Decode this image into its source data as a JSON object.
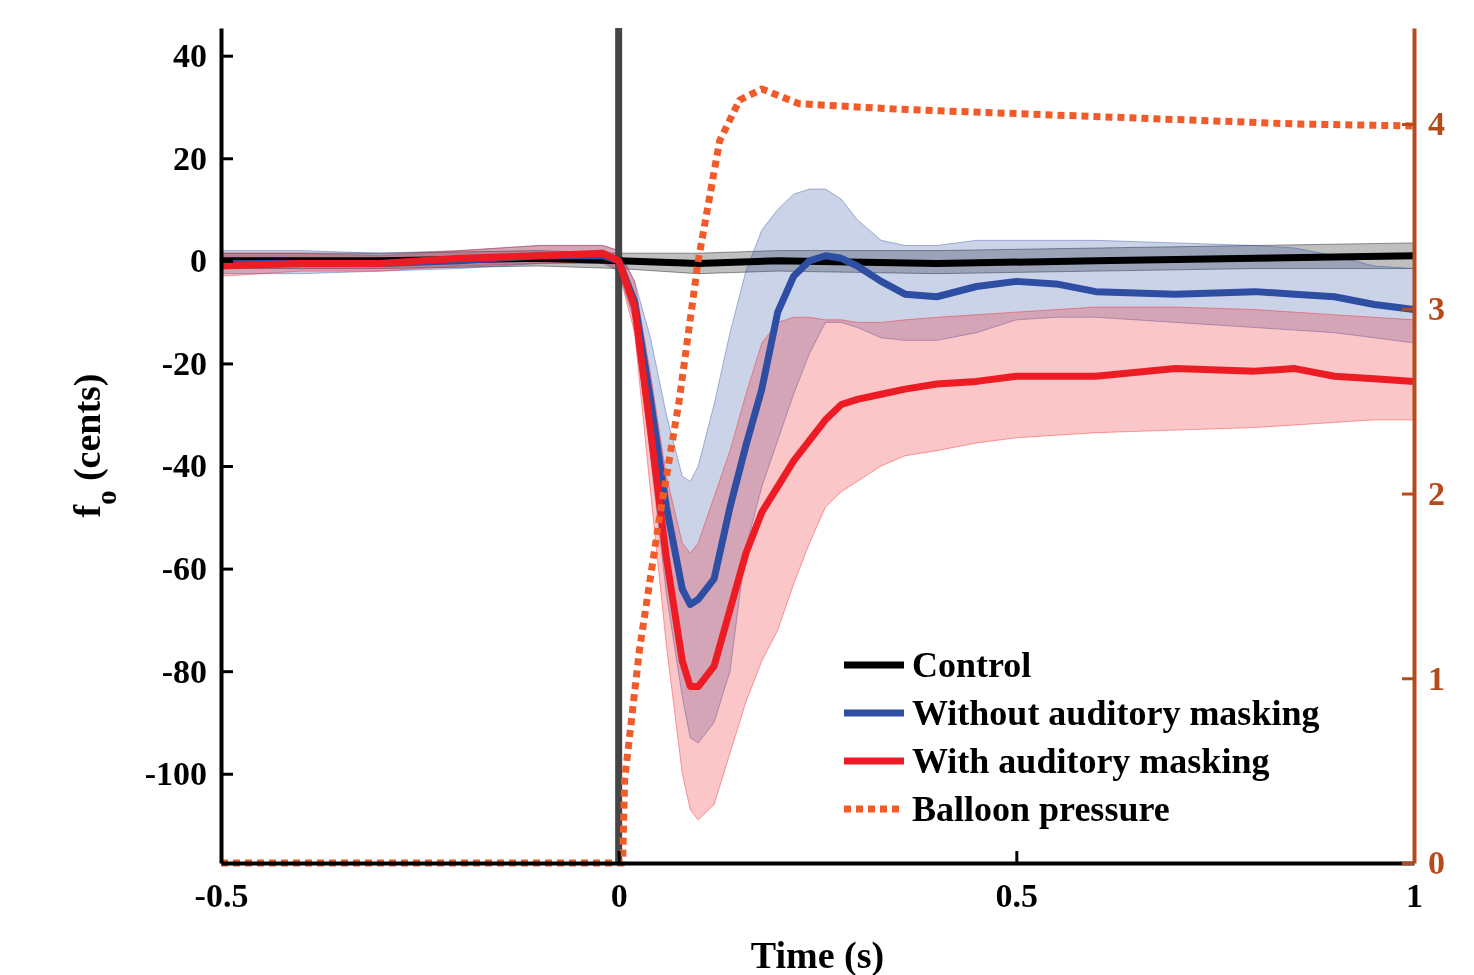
{
  "chart_data": {
    "type": "line",
    "xlabel": "Time (s)",
    "ylabel": "f$_{o}$ (cents)",
    "xlim": [
      -0.5,
      1
    ],
    "xticks": [
      -0.5,
      0,
      0.5,
      1
    ],
    "ylim": [
      -117.4,
      45.4
    ],
    "yticks": [
      40,
      20,
      0,
      -20,
      -40,
      -60,
      -80,
      -100
    ],
    "y2lim": [
      0,
      4.52
    ],
    "y2ticks": [
      0,
      1,
      2,
      3,
      4
    ],
    "legend": "bottom right",
    "grid": false,
    "ref_lines": [
      {
        "axis": "x",
        "value": 0,
        "color": "#454545"
      }
    ],
    "series": [
      {
        "name": "Control",
        "color": "#000000",
        "line_style": "solid",
        "x": [
          -0.5,
          -0.3,
          -0.1,
          0,
          0.1,
          0.2,
          0.4,
          0.6,
          0.8,
          1
        ],
        "values": [
          0,
          0,
          0.5,
          0,
          -0.5,
          0,
          -0.5,
          0,
          0.5,
          1
        ],
        "upper": [
          1.5,
          1.5,
          2,
          1.5,
          1.5,
          2,
          2,
          2.5,
          3,
          3.5
        ],
        "lower": [
          -1.5,
          -1.5,
          -1,
          -1.5,
          -2.5,
          -2,
          -2.5,
          -2,
          -1.5,
          -1.5
        ]
      },
      {
        "name": "Without auditory masking",
        "color": "#2e4ea3",
        "line_style": "solid",
        "x": [
          -0.5,
          -0.4,
          -0.3,
          -0.2,
          -0.1,
          -0.02,
          0,
          0.02,
          0.04,
          0.06,
          0.08,
          0.09,
          0.1,
          0.12,
          0.14,
          0.16,
          0.18,
          0.2,
          0.22,
          0.24,
          0.26,
          0.28,
          0.3,
          0.33,
          0.36,
          0.4,
          0.45,
          0.5,
          0.55,
          0.6,
          0.7,
          0.8,
          0.85,
          0.9,
          0.95,
          1
        ],
        "values": [
          -0.5,
          -0.5,
          -0.5,
          0,
          1,
          1,
          0,
          -8,
          -27,
          -48,
          -64,
          -67,
          -66,
          -62,
          -48,
          -36,
          -25,
          -10,
          -3,
          0,
          1,
          0.5,
          -1,
          -4,
          -6.5,
          -7,
          -5,
          -4,
          -4.5,
          -6,
          -6.5,
          -6,
          -6.5,
          -7,
          -8.5,
          -9.5
        ],
        "upper": [
          2,
          2,
          1.5,
          2,
          3,
          3,
          2,
          -4,
          -15,
          -30,
          -42,
          -43,
          -40,
          -28,
          -14,
          -2,
          6,
          10,
          13,
          14,
          14,
          12,
          8,
          4,
          3,
          3,
          4,
          4,
          4,
          4,
          3.5,
          3,
          2.5,
          1,
          -1,
          -1.5
        ],
        "lower": [
          -2.5,
          -2.5,
          -2,
          -1.5,
          -0.5,
          -0.5,
          -2,
          -12,
          -38,
          -65,
          -85,
          -93,
          -94,
          -90,
          -80,
          -56,
          -44,
          -35,
          -26,
          -18,
          -12,
          -12,
          -13,
          -15,
          -15.5,
          -15.5,
          -14,
          -11.5,
          -11,
          -11,
          -12,
          -13,
          -13.5,
          -14,
          -15,
          -16
        ]
      },
      {
        "name": "With auditory masking",
        "color": "#ed1c24",
        "line_style": "solid",
        "x": [
          -0.5,
          -0.4,
          -0.3,
          -0.2,
          -0.1,
          -0.02,
          0,
          0.02,
          0.04,
          0.06,
          0.08,
          0.09,
          0.1,
          0.12,
          0.14,
          0.16,
          0.18,
          0.2,
          0.22,
          0.24,
          0.26,
          0.28,
          0.3,
          0.33,
          0.36,
          0.4,
          0.45,
          0.5,
          0.55,
          0.6,
          0.7,
          0.8,
          0.85,
          0.9,
          0.95,
          1
        ],
        "values": [
          -1,
          -0.5,
          -0.5,
          0.5,
          1,
          1.5,
          0,
          -9,
          -33,
          -58,
          -78,
          -83,
          -83,
          -79,
          -68,
          -57,
          -49,
          -44,
          -39,
          -35,
          -31,
          -28,
          -27,
          -26,
          -25,
          -24,
          -23.5,
          -22.5,
          -22.5,
          -22.5,
          -21,
          -21.5,
          -21,
          -22.5,
          -23,
          -23.5
        ],
        "upper": [
          1.5,
          1.5,
          1,
          2,
          3,
          3,
          2,
          -4,
          -22,
          -42,
          -55,
          -57,
          -55,
          -46,
          -37,
          -26,
          -16,
          -12,
          -11,
          -11,
          -11.5,
          -11.5,
          -12,
          -12,
          -11.5,
          -11,
          -10.5,
          -10,
          -9.5,
          -9,
          -9,
          -9.5,
          -10,
          -10.5,
          -11,
          -11.5
        ],
        "lower": [
          -3,
          -2,
          -2,
          -1,
          -0.5,
          0,
          -2,
          -14,
          -45,
          -75,
          -100,
          -107,
          -109,
          -106,
          -96,
          -86,
          -78,
          -72,
          -63,
          -55,
          -48,
          -45,
          -43,
          -40,
          -38,
          -37,
          -35.5,
          -34.5,
          -34,
          -33.5,
          -33,
          -32.5,
          -32,
          -31.5,
          -31,
          -31
        ]
      },
      {
        "name": "Balloon pressure",
        "color": "#f15a29",
        "line_style": "dotted",
        "axis": "y2",
        "x": [
          -0.5,
          0,
          0.005,
          0.0075,
          0.026,
          0.051,
          0.076,
          0.1,
          0.127,
          0.152,
          0.18,
          0.227,
          0.353,
          0.604,
          0.855,
          1
        ],
        "values": [
          0,
          0,
          0,
          0.45,
          1.15,
          1.86,
          2.5,
          3.26,
          3.91,
          4.13,
          4.19,
          4.11,
          4.08,
          4.04,
          4.0,
          3.99
        ]
      }
    ]
  }
}
